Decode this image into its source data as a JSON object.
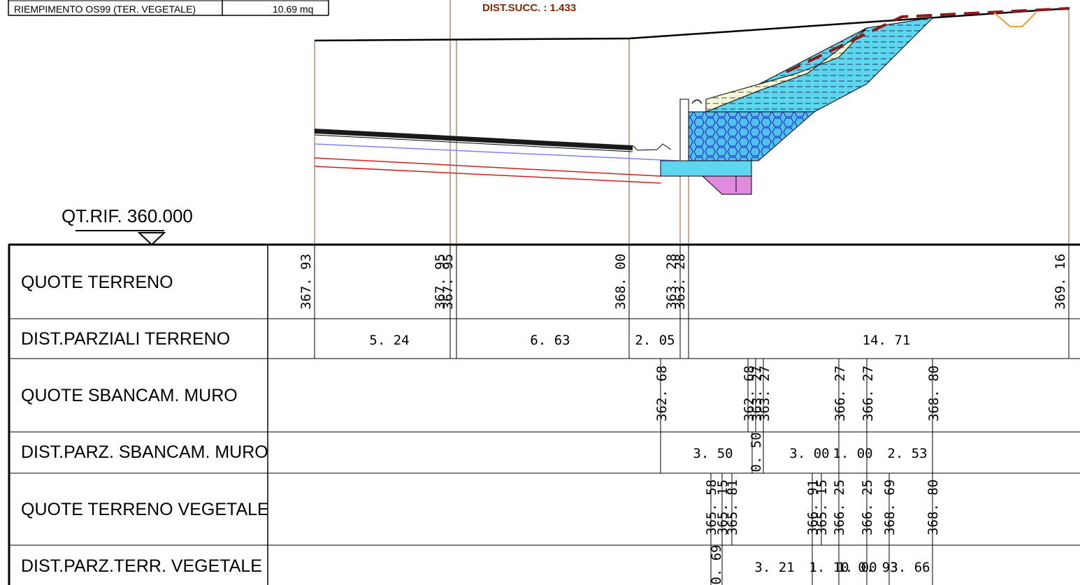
{
  "legend_row": {
    "label": "RIEMPIMENTO OS99 (TER. VEGETALE)",
    "value": "10.69 mq"
  },
  "dist_succ": "DIST.SUCC. : 1.433",
  "reference": "QT.RIF. 360.000",
  "rows": [
    {
      "label": "QUOTE TERRENO"
    },
    {
      "label": "DIST.PARZIALI TERRENO"
    },
    {
      "label": "QUOTE SBANCAM. MURO"
    },
    {
      "label": "DIST.PARZ. SBANCAM. MURO"
    },
    {
      "label": "QUOTE TERRENO VEGETALE"
    },
    {
      "label": "DIST.PARZ.TERR. VEGETALE"
    }
  ],
  "quote_terreno": [
    "367. 93",
    "367. 95",
    "367. 95",
    "368. 00",
    "363. 28",
    "363. 28",
    "369. 16"
  ],
  "dist_parziali_terreno": [
    "5. 24",
    "6. 63",
    "2. 05",
    "14. 71"
  ],
  "quote_sbancam_muro": [
    "362. 68",
    "362. 68",
    "363. 27",
    "363. 27",
    "366. 27",
    "366. 27",
    "368. 80"
  ],
  "dist_parz_sbancam_muro": [
    "3. 50",
    "0. 50",
    "3. 00",
    "1. 00",
    "2. 53"
  ],
  "quote_terreno_vegetale": [
    "365. 58",
    "365. 15",
    "365. 81",
    "366. 91",
    "365. 15",
    "366. 25",
    "366. 25",
    "368. 69",
    "368. 80"
  ],
  "dist_parz_terr_vegetale": [
    "0. 69",
    "3. 21",
    "1. 10",
    "1. 00",
    "0. 93",
    "3. 66"
  ]
}
